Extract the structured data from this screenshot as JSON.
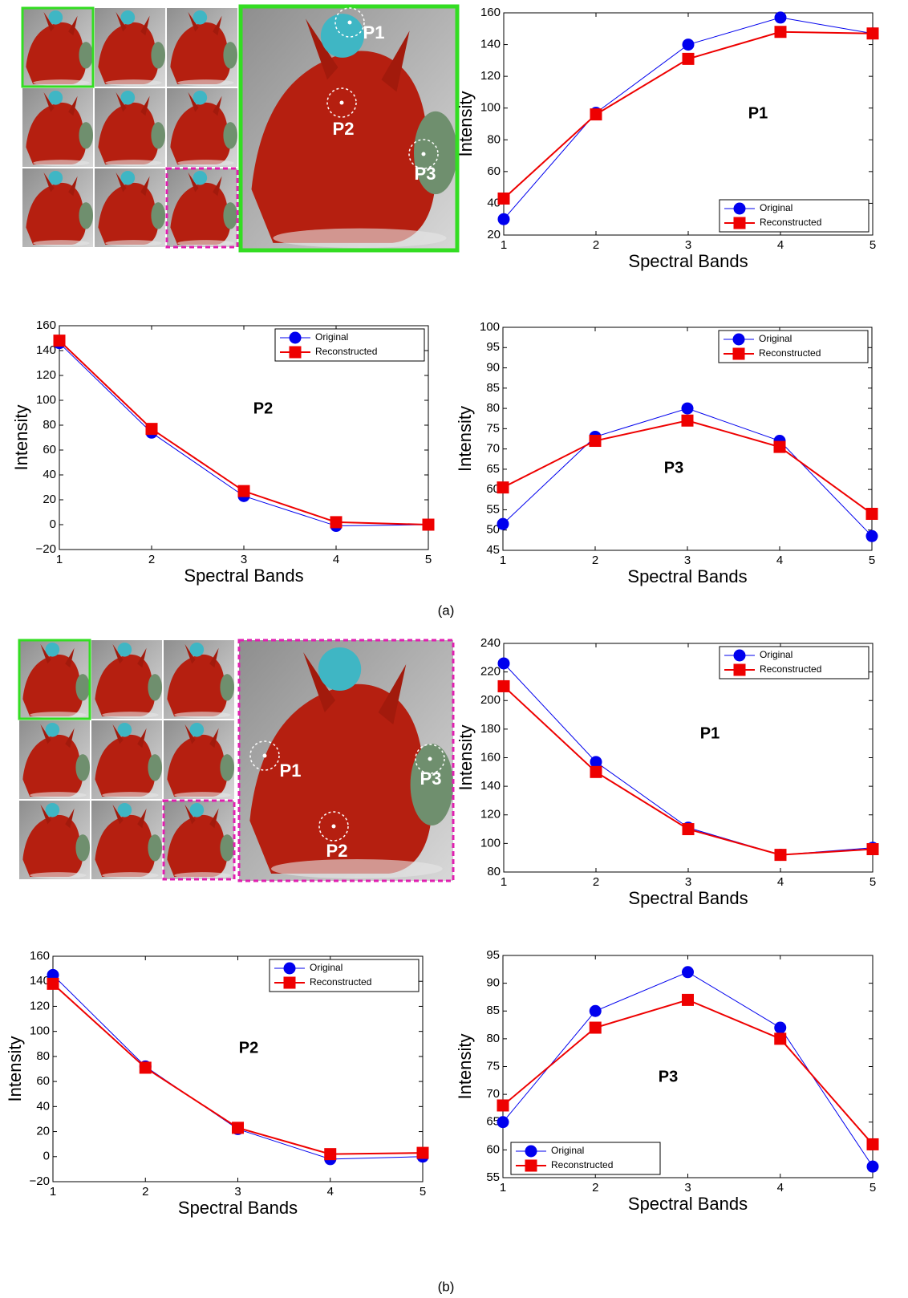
{
  "chart_data": [
    {
      "type": "line",
      "annotation": "P1",
      "xlabel": "Spectral Bands",
      "ylabel": "Intensity",
      "x": [
        1,
        2,
        3,
        4,
        5
      ],
      "series": [
        {
          "name": "Original",
          "color": "#0000ee",
          "values": [
            30,
            97,
            140,
            157,
            147
          ]
        },
        {
          "name": "Reconstructed",
          "color": "#ee0000",
          "values": [
            43,
            96,
            131,
            148,
            147
          ]
        }
      ],
      "xlim": [
        1,
        5
      ],
      "xticks": [
        1,
        2,
        3,
        4,
        5
      ],
      "ylim": [
        20,
        160
      ],
      "yticks": [
        20,
        40,
        60,
        80,
        100,
        120,
        140,
        160
      ],
      "legend": "lower right"
    },
    {
      "type": "line",
      "annotation": "P2",
      "xlabel": "Spectral Bands",
      "ylabel": "Intensity",
      "x": [
        1,
        2,
        3,
        4,
        5
      ],
      "series": [
        {
          "name": "Original",
          "color": "#0000ee",
          "values": [
            146,
            74,
            23,
            -1,
            0
          ]
        },
        {
          "name": "Reconstructed",
          "color": "#ee0000",
          "values": [
            148,
            77,
            27,
            2,
            0
          ]
        }
      ],
      "xlim": [
        1,
        5
      ],
      "xticks": [
        1,
        2,
        3,
        4,
        5
      ],
      "ylim": [
        -20,
        160
      ],
      "yticks": [
        {
          "value": -20,
          "label": "−20"
        },
        0,
        20,
        40,
        60,
        80,
        100,
        120,
        140,
        160
      ],
      "legend": "upper right"
    },
    {
      "type": "line",
      "annotation": "P3",
      "xlabel": "Spectral Bands",
      "ylabel": "Intensity",
      "x": [
        1,
        2,
        3,
        4,
        5
      ],
      "series": [
        {
          "name": "Original",
          "color": "#0000ee",
          "values": [
            51.5,
            73,
            80,
            72,
            48.5
          ]
        },
        {
          "name": "Reconstructed",
          "color": "#ee0000",
          "values": [
            60.5,
            72,
            77,
            70.5,
            54
          ]
        }
      ],
      "xlim": [
        1,
        5
      ],
      "xticks": [
        1,
        2,
        3,
        4,
        5
      ],
      "ylim": [
        45,
        100
      ],
      "yticks": [
        45,
        50,
        55,
        60,
        65,
        70,
        75,
        80,
        85,
        90,
        95,
        100
      ],
      "legend": "upper right"
    },
    {
      "type": "line",
      "annotation": "P1",
      "xlabel": "Spectral Bands",
      "ylabel": "Intensity",
      "x": [
        1,
        2,
        3,
        4,
        5
      ],
      "series": [
        {
          "name": "Original",
          "color": "#0000ee",
          "values": [
            226,
            157,
            111,
            92,
            97
          ]
        },
        {
          "name": "Reconstructed",
          "color": "#ee0000",
          "values": [
            210,
            150,
            110,
            92,
            96
          ]
        }
      ],
      "xlim": [
        1,
        5
      ],
      "xticks": [
        1,
        2,
        3,
        4,
        5
      ],
      "ylim": [
        80,
        240
      ],
      "yticks": [
        80,
        100,
        120,
        140,
        160,
        180,
        200,
        220,
        240
      ],
      "legend": "upper right"
    },
    {
      "type": "line",
      "annotation": "P2",
      "xlabel": "Spectral Bands",
      "ylabel": "Intensity",
      "x": [
        1,
        2,
        3,
        4,
        5
      ],
      "series": [
        {
          "name": "Original",
          "color": "#0000ee",
          "values": [
            145,
            72,
            22,
            -2,
            0
          ]
        },
        {
          "name": "Reconstructed",
          "color": "#ee0000",
          "values": [
            138,
            71,
            23,
            2,
            3
          ]
        }
      ],
      "xlim": [
        1,
        5
      ],
      "xticks": [
        1,
        2,
        3,
        4,
        5
      ],
      "ylim": [
        -20,
        160
      ],
      "yticks": [
        {
          "value": -20,
          "label": "−20"
        },
        0,
        20,
        40,
        60,
        80,
        100,
        120,
        140,
        160
      ],
      "legend": "upper right"
    },
    {
      "type": "line",
      "annotation": "P3",
      "xlabel": "Spectral Bands",
      "ylabel": "Intensity",
      "x": [
        1,
        2,
        3,
        4,
        5
      ],
      "series": [
        {
          "name": "Original",
          "color": "#0000ee",
          "values": [
            65,
            85,
            92,
            82,
            57
          ]
        },
        {
          "name": "Reconstructed",
          "color": "#ee0000",
          "values": [
            68,
            82,
            87,
            80,
            61
          ]
        }
      ],
      "xlim": [
        1,
        5
      ],
      "xticks": [
        1,
        2,
        3,
        4,
        5
      ],
      "ylim": [
        55,
        95
      ],
      "yticks": [
        55,
        60,
        65,
        70,
        75,
        80,
        85,
        90,
        95
      ],
      "legend": "lower left"
    }
  ],
  "panels": [
    {
      "caption": "(a)",
      "points": [
        "P1",
        "P2",
        "P3"
      ]
    },
    {
      "caption": "(b)",
      "points": [
        "P1",
        "P2",
        "P3"
      ]
    }
  ]
}
